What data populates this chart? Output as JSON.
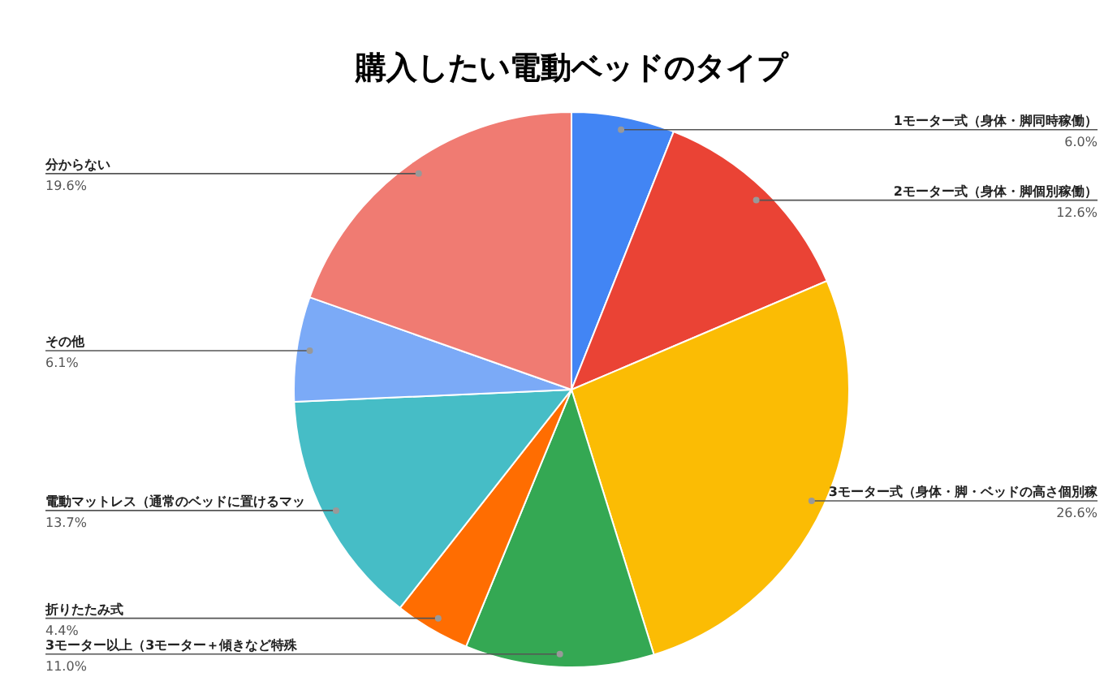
{
  "chart_data": {
    "type": "pie",
    "title": "購入したい電動ベッドのタイプ",
    "categories": [
      "1モーター式（身体・脚同時稼働）",
      "2モーター式（身体・脚個別稼働）",
      "3モーター式（身体・脚・ベッドの高さ個別稼",
      "3モーター以上（3モーター＋傾きなど特殊",
      "折りたたみ式",
      "電動マットレス（通常のベッドに置けるマッ",
      "その他",
      "分からない"
    ],
    "values": [
      6.0,
      12.6,
      26.6,
      11.0,
      4.4,
      13.7,
      6.1,
      19.6
    ],
    "value_labels": [
      "6.0%",
      "12.6%",
      "26.6%",
      "11.0%",
      "4.4%",
      "13.7%",
      "6.1%",
      "19.6%"
    ],
    "colors": [
      "#4285f4",
      "#ea4335",
      "#fbbc04",
      "#34a853",
      "#ff6d01",
      "#46bdc6",
      "#7baaf7",
      "#f07b72"
    ]
  }
}
